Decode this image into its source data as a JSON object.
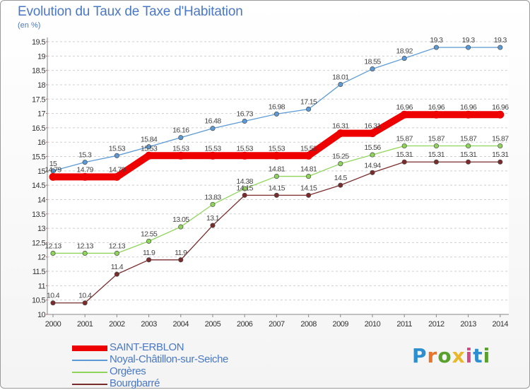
{
  "header": {
    "title": "Evolution du Taux de Taxe d'Habitation",
    "subtitle": "(en %)"
  },
  "logo": {
    "text": "Proxiti",
    "letter_colors": [
      "#2e8fd0",
      "#e8742a",
      "#5aa02c",
      "#e8b82a",
      "#d04a8a",
      "#2e8fd0",
      "#5aa02c"
    ]
  },
  "chart_data": {
    "type": "line",
    "title": "Evolution du Taux de Taxe d'Habitation",
    "subtitle": "(en %)",
    "xlabel": "",
    "ylabel": "",
    "x": [
      "2000",
      "2001",
      "2002",
      "2003",
      "2004",
      "2005",
      "2006",
      "2007",
      "2008",
      "2009",
      "2010",
      "2011",
      "2012",
      "2013",
      "2014"
    ],
    "ylim": [
      10,
      19.5
    ],
    "yticks": [
      "10",
      "10.5",
      "11",
      "11.5",
      "12",
      "12.5",
      "13",
      "13.5",
      "14",
      "14.5",
      "15",
      "15.5",
      "16",
      "16.5",
      "17",
      "17.5",
      "18",
      "18.5",
      "19",
      "19.5"
    ],
    "grid": "horizontal dashed",
    "legend_position": "bottom-left",
    "series": [
      {
        "name": "Noyal-Châtillon-sur-Seiche",
        "color": "#5b9ad5",
        "values": [
          15,
          15.3,
          15.53,
          15.84,
          16.16,
          16.48,
          16.73,
          16.98,
          17.15,
          18.01,
          18.55,
          18.92,
          19.3,
          19.3,
          19.3
        ],
        "labels": [
          "15",
          "15.3",
          "15.53",
          "15.84",
          "16.16",
          "16.48",
          "16.73",
          "16.98",
          "17.15",
          "18.01",
          "18.55",
          "18.92",
          "19.3",
          "19.3",
          "19.3"
        ]
      },
      {
        "name": "Orgères",
        "color": "#8fd45a",
        "values": [
          12.13,
          12.13,
          12.13,
          12.55,
          13.05,
          13.83,
          14.38,
          14.81,
          14.81,
          15.25,
          15.56,
          15.87,
          15.87,
          15.87,
          15.87
        ],
        "labels": [
          "12.13",
          "12.13",
          "12.13",
          "12.55",
          "13.05",
          "13.83",
          "14.38",
          "14.81",
          "14.81",
          "15.25",
          "15.56",
          "15.87",
          "15.87",
          "15.87",
          "15.87"
        ]
      },
      {
        "name": "Bourgbarré",
        "color": "#7a2c2c",
        "values": [
          10.4,
          10.4,
          11.4,
          11.9,
          11.9,
          13.1,
          14.15,
          14.15,
          14.15,
          14.5,
          14.94,
          15.31,
          15.31,
          15.31,
          15.31
        ],
        "labels": [
          "10.4",
          "10.4",
          "11.4",
          "11.9",
          "11.9",
          "13.1",
          "14.15",
          "14.15",
          "14.15",
          "14.5",
          "14.94",
          "15.31",
          "15.31",
          "15.31",
          "15.31"
        ]
      },
      {
        "name": "SAINT-ERBLON",
        "color": "#ee0000",
        "values": [
          14.79,
          14.79,
          14.79,
          15.53,
          15.53,
          15.53,
          15.53,
          15.53,
          15.53,
          16.31,
          16.31,
          16.96,
          16.96,
          16.96,
          16.96
        ],
        "labels": [
          "14.79",
          "14.79",
          "14.79",
          "15.53",
          "15.53",
          "15.53",
          "15.53",
          "15.53",
          "15.53",
          "16.31",
          "16.31",
          "16.96",
          "16.96",
          "16.96",
          "16.96"
        ]
      }
    ],
    "legend": [
      {
        "name": "SAINT-ERBLON",
        "color": "#ee0000"
      },
      {
        "name": "Noyal-Châtillon-sur-Seiche",
        "color": "#5b9ad5"
      },
      {
        "name": "Orgères",
        "color": "#8fd45a"
      },
      {
        "name": "Bourgbarré",
        "color": "#7a2c2c"
      }
    ]
  }
}
